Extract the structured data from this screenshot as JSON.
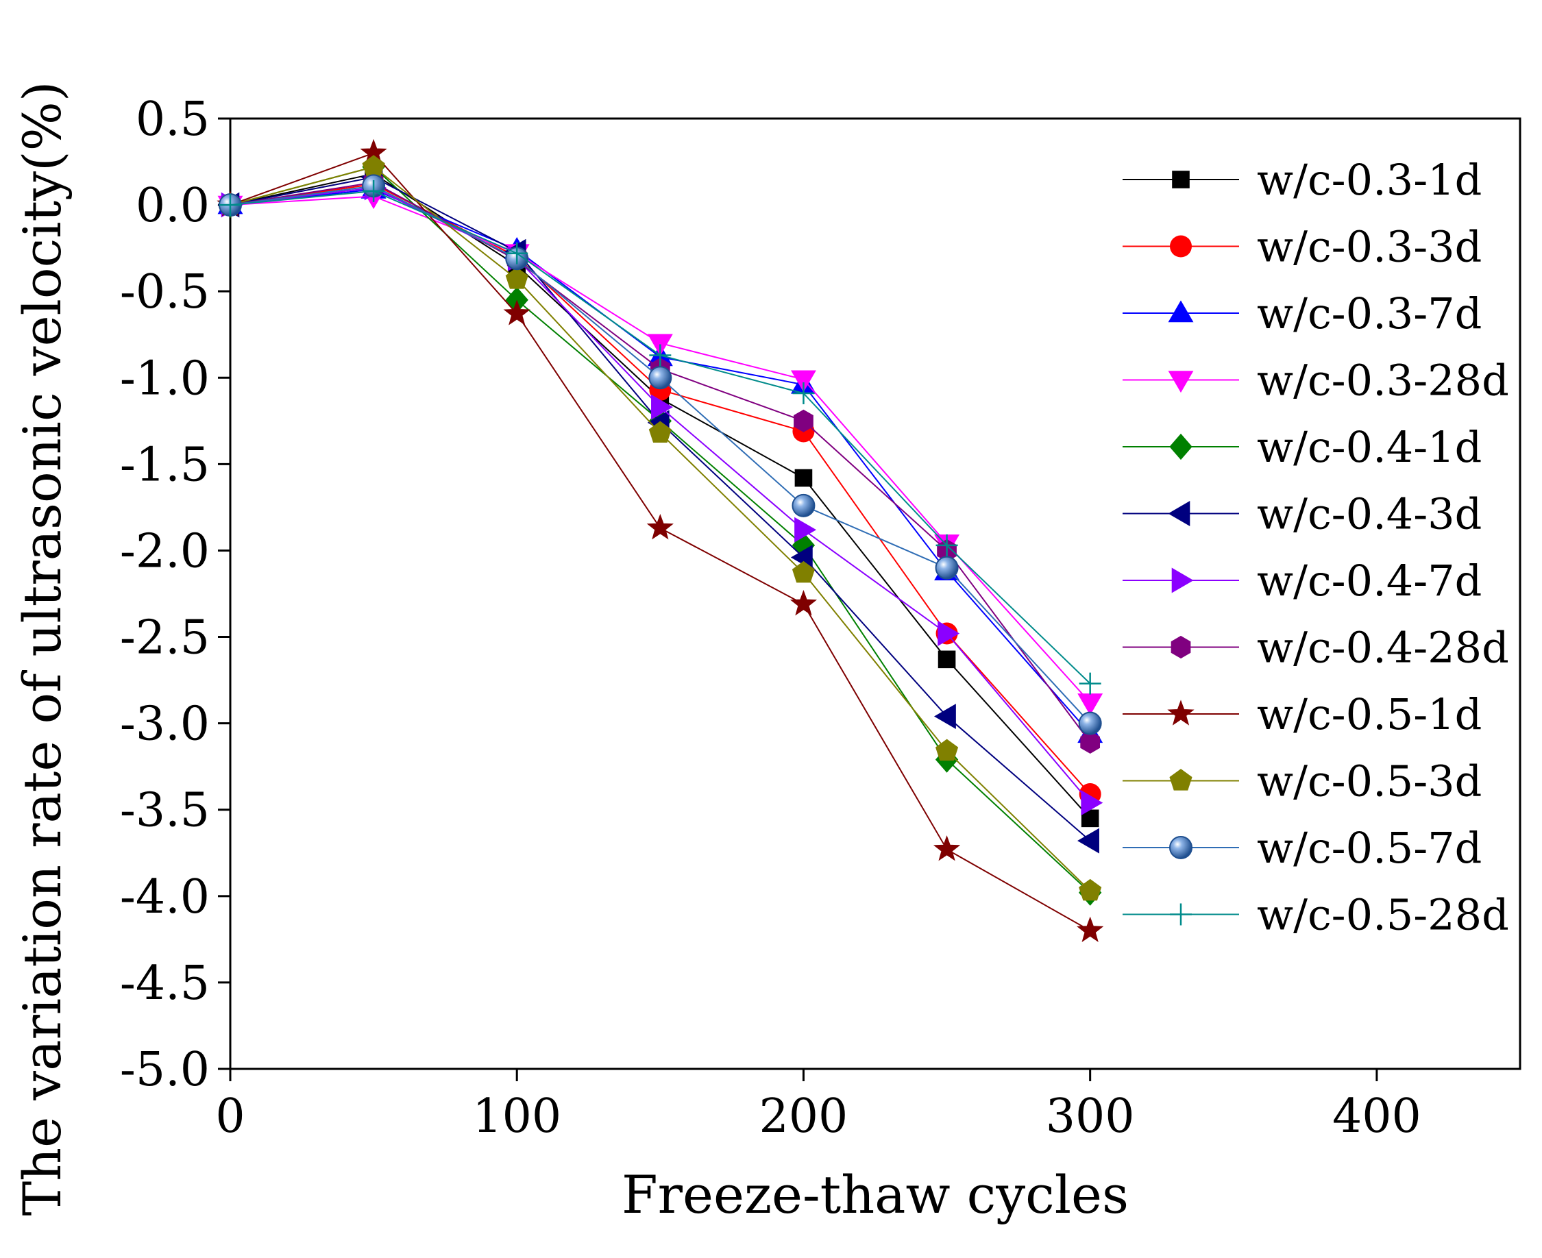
{
  "chart_data": {
    "type": "line",
    "xlabel": "Freeze-thaw cycles",
    "ylabel": "The variation rate of ultrasonic velocity(%)",
    "xlim": [
      0,
      450
    ],
    "ylim": [
      -5.0,
      0.5
    ],
    "xticks": [
      0,
      100,
      200,
      300,
      400
    ],
    "xtick_labels": [
      "0",
      "100",
      "200",
      "300",
      "400"
    ],
    "yticks": [
      0.5,
      0.0,
      -0.5,
      -1.0,
      -1.5,
      -2.0,
      -2.5,
      -3.0,
      -3.5,
      -4.0,
      -4.5,
      -5.0
    ],
    "ytick_labels": [
      "0.5",
      "0.0",
      "-0.5",
      "-1.0",
      "-1.5",
      "-2.0",
      "-2.5",
      "-3.0",
      "-3.5",
      "-4.0",
      "-4.5",
      "-5.0"
    ],
    "grid": false,
    "legend_position": "right",
    "x": [
      0,
      50,
      100,
      150,
      200,
      250,
      300
    ],
    "series": [
      {
        "name": "w/c-0.3-1d",
        "color": "#000000",
        "marker": "square",
        "values": [
          0,
          0.18,
          -0.35,
          -1.12,
          -1.58,
          -2.63,
          -3.55
        ]
      },
      {
        "name": "w/c-0.3-3d",
        "color": "#ff0000",
        "marker": "circle",
        "values": [
          0,
          0.12,
          -0.3,
          -1.07,
          -1.31,
          -2.48,
          -3.41
        ]
      },
      {
        "name": "w/c-0.3-7d",
        "color": "#0000ff",
        "marker": "triangle-up",
        "values": [
          0,
          0.09,
          -0.26,
          -0.88,
          -1.04,
          -2.12,
          -3.06
        ]
      },
      {
        "name": "w/c-0.3-28d",
        "color": "#ff00ff",
        "marker": "triangle-down",
        "values": [
          0,
          0.05,
          -0.28,
          -0.8,
          -1.01,
          -1.96,
          -2.88
        ]
      },
      {
        "name": "w/c-0.4-1d",
        "color": "#008000",
        "marker": "diamond",
        "values": [
          0,
          0.22,
          -0.55,
          -1.25,
          -1.97,
          -3.21,
          -3.98
        ]
      },
      {
        "name": "w/c-0.4-3d",
        "color": "#00007f",
        "marker": "triangle-left",
        "values": [
          0,
          0.16,
          -0.27,
          -1.26,
          -2.04,
          -2.96,
          -3.68
        ]
      },
      {
        "name": "w/c-0.4-7d",
        "color": "#8b00ff",
        "marker": "triangle-right",
        "values": [
          0,
          0.1,
          -0.31,
          -1.17,
          -1.88,
          -2.48,
          -3.46
        ]
      },
      {
        "name": "w/c-0.4-28d",
        "color": "#800080",
        "marker": "hexagon",
        "values": [
          0,
          0.13,
          -0.32,
          -0.95,
          -1.25,
          -2.0,
          -3.11
        ]
      },
      {
        "name": "w/c-0.5-1d",
        "color": "#7f0000",
        "marker": "star",
        "values": [
          0,
          0.3,
          -0.63,
          -1.87,
          -2.31,
          -3.73,
          -4.2
        ]
      },
      {
        "name": "w/c-0.5-3d",
        "color": "#808000",
        "marker": "pentagon",
        "values": [
          0,
          0.22,
          -0.43,
          -1.32,
          -2.13,
          -3.16,
          -3.97
        ]
      },
      {
        "name": "w/c-0.5-7d",
        "color": "#2f6db5",
        "marker": "sphere",
        "values": [
          0,
          0.11,
          -0.31,
          -1.0,
          -1.74,
          -2.1,
          -3.0
        ]
      },
      {
        "name": "w/c-0.5-28d",
        "color": "#008b8b",
        "marker": "plus",
        "values": [
          0,
          0.08,
          -0.28,
          -0.87,
          -1.09,
          -1.97,
          -2.77
        ]
      }
    ]
  }
}
